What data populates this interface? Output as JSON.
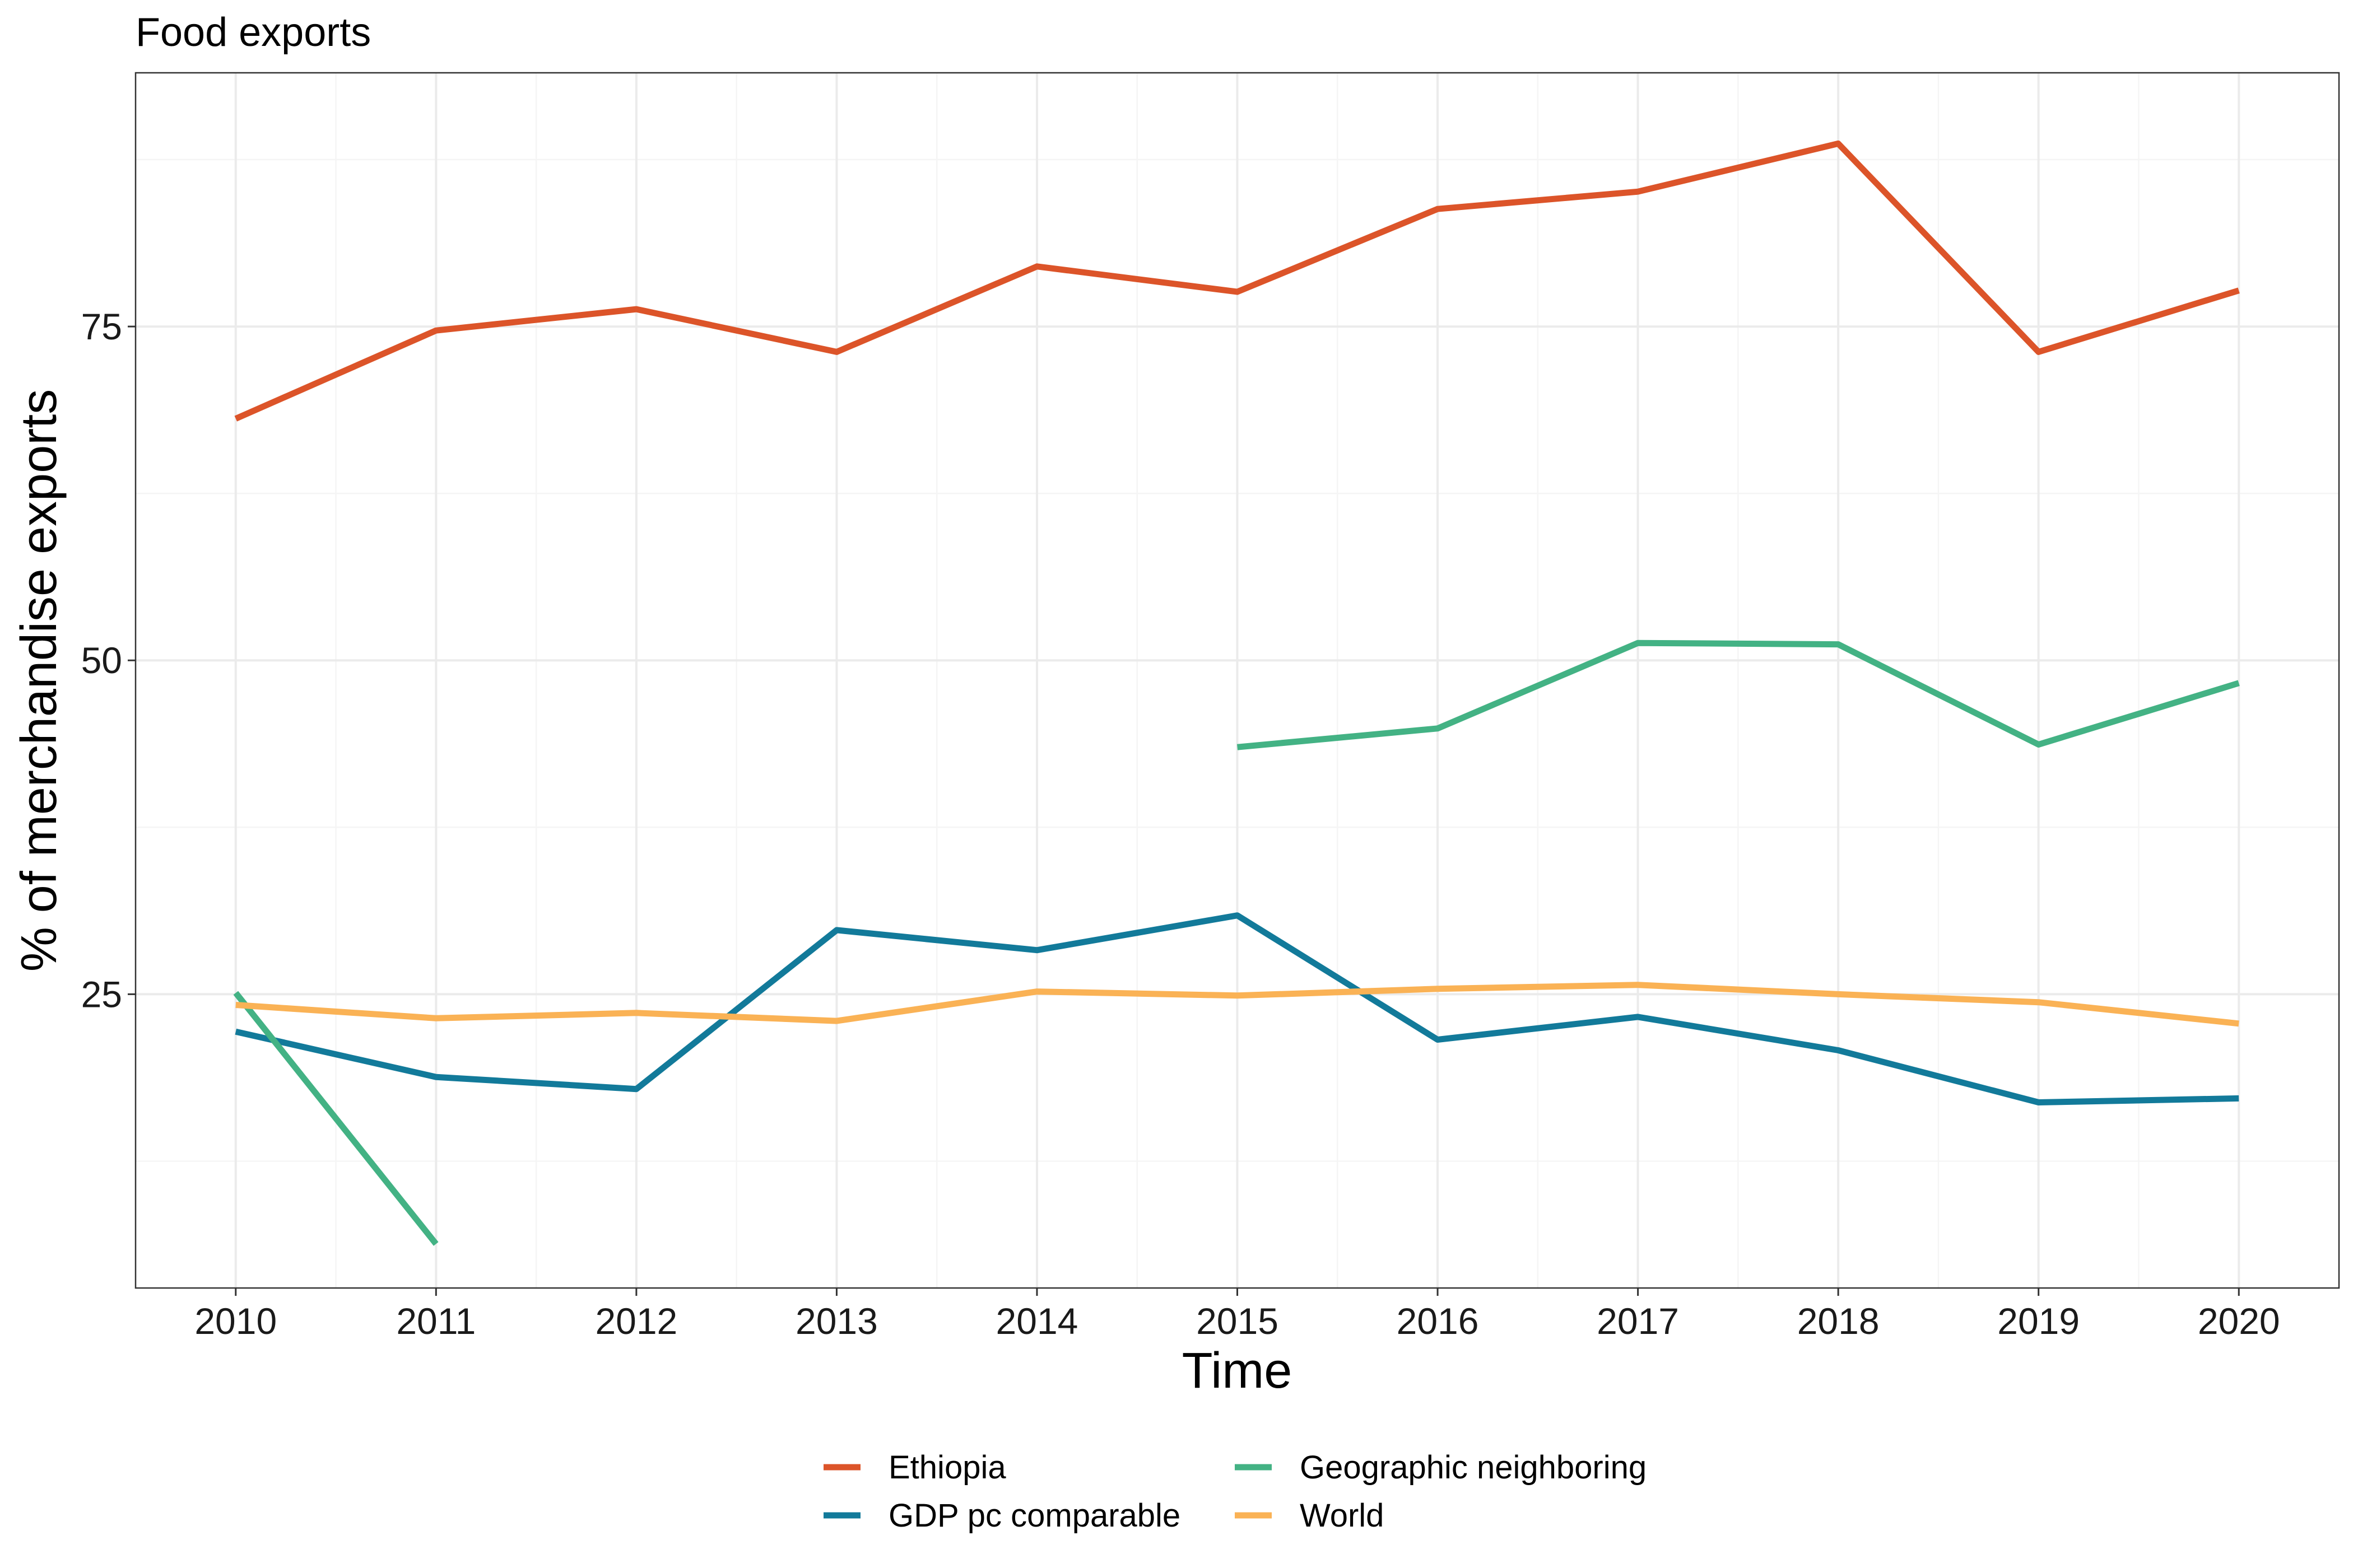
{
  "chart_data": {
    "type": "line",
    "title": "Food exports",
    "xlabel": "Time",
    "ylabel": "% of merchandise exports",
    "x": [
      2010,
      2011,
      2012,
      2013,
      2014,
      2015,
      2016,
      2017,
      2018,
      2019,
      2020
    ],
    "xlim": [
      2009.5,
      2020.5
    ],
    "ylim": [
      3,
      94
    ],
    "yticks": [
      25,
      50,
      75
    ],
    "yminor": [
      12.5,
      37.5,
      62.5,
      87.5
    ],
    "grid": true,
    "legend_position": "bottom",
    "series": [
      {
        "name": "Ethiopia",
        "color": "#dc5429",
        "values": [
          68.1,
          74.7,
          76.3,
          73.1,
          79.5,
          77.6,
          83.8,
          85.1,
          88.7,
          73.1,
          77.7
        ]
      },
      {
        "name": "GDP pc comparable",
        "color": "#127a9a",
        "values": [
          22.2,
          18.8,
          17.9,
          29.8,
          28.3,
          30.9,
          21.6,
          23.3,
          20.8,
          16.9,
          17.2
        ]
      },
      {
        "name": "Geographic neighboring",
        "color": "#43b284",
        "values": [
          25.1,
          6.3,
          null,
          null,
          null,
          43.5,
          44.9,
          51.3,
          51.2,
          43.7,
          48.3
        ]
      },
      {
        "name": "World",
        "color": "#fab255",
        "values": [
          24.2,
          23.2,
          23.6,
          23.0,
          25.2,
          24.9,
          25.4,
          25.7,
          25.0,
          24.4,
          22.8
        ]
      }
    ]
  }
}
